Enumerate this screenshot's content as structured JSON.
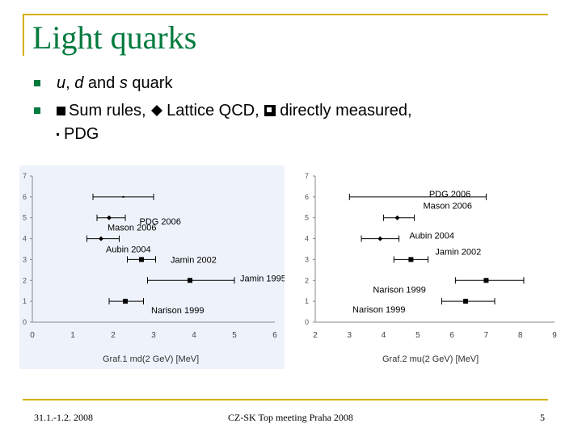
{
  "slide": {
    "title": "Light quarks",
    "bullets": {
      "b1": {
        "part1": "u",
        "part2": ", ",
        "part3": "d",
        "part4": " and ",
        "part5": "s",
        "part6": " quark"
      },
      "b2": {
        "t1": "Sum rules, ",
        "t2": "Lattice QCD, ",
        "t3": "directly measured,",
        "t4": "PDG"
      }
    },
    "footer": {
      "date": "31.1.-1.2. 2008",
      "event": "CZ-SK Top meeting Praha 2008",
      "page": "5"
    }
  },
  "colors": {
    "title": "#007a3d",
    "accent_rule": "#d4b000",
    "chart_bg": "#eef3fb"
  },
  "chart_data": [
    {
      "type": "scatter",
      "title": "",
      "xlabel": "Graf.1 md(2 GeV) [MeV]",
      "ylabel": "",
      "xlim": [
        0,
        6
      ],
      "ylim": [
        0,
        7
      ],
      "x_ticks": [
        "0",
        "1",
        "2",
        "3",
        "4",
        "5",
        "6"
      ],
      "y_ticks": [
        "0",
        "1",
        "2",
        "3",
        "4",
        "5",
        "6",
        "7"
      ],
      "points": [
        {
          "label": "PDG 2006",
          "y": 6,
          "x": 2.25,
          "lo": 1.5,
          "hi": 3.0,
          "marker": "dot"
        },
        {
          "label": "Mason 2006",
          "y": 5,
          "x": 1.9,
          "lo": 1.6,
          "hi": 2.3,
          "marker": "diamond"
        },
        {
          "label": "Aubin 2004",
          "y": 4,
          "x": 1.7,
          "lo": 1.35,
          "hi": 2.15,
          "marker": "diamond"
        },
        {
          "label": "Jamin 2002",
          "y": 3,
          "x": 2.7,
          "lo": 2.35,
          "hi": 3.05,
          "marker": "square"
        },
        {
          "label": "Jamin 1995",
          "y": 2,
          "x": 3.9,
          "lo": 2.85,
          "hi": 5.0,
          "marker": "square"
        },
        {
          "label": "Narison 1999",
          "y": 1,
          "x": 2.3,
          "lo": 1.9,
          "hi": 2.75,
          "marker": "square"
        }
      ]
    },
    {
      "type": "scatter",
      "title": "",
      "xlabel": "Graf.2 mu(2 GeV) [MeV]",
      "ylabel": "",
      "xlim": [
        2,
        9
      ],
      "ylim": [
        0,
        7
      ],
      "x_ticks": [
        "2",
        "3",
        "4",
        "5",
        "6",
        "7",
        "8",
        "9"
      ],
      "y_ticks": [
        "0",
        "1",
        "2",
        "3",
        "4",
        "5",
        "6",
        "7"
      ],
      "points": [
        {
          "label": "PDG 2006",
          "y": 6,
          "x": 5,
          "lo": 3.0,
          "hi": 7.0,
          "marker": "none"
        },
        {
          "label": "Mason 2006",
          "y": 5,
          "x": 4.4,
          "lo": 4.0,
          "hi": 4.9,
          "marker": "diamond"
        },
        {
          "label": "Aubin 2004",
          "y": 4,
          "x": 3.9,
          "lo": 3.35,
          "hi": 4.45,
          "marker": "diamond"
        },
        {
          "label": "Jamin 2002",
          "y": 3,
          "x": 4.8,
          "lo": 4.3,
          "hi": 5.3,
          "marker": "square"
        },
        {
          "label": "Narison 1999",
          "y": 2,
          "x": 7.0,
          "lo": 6.1,
          "hi": 8.1,
          "marker": "square"
        },
        {
          "label": "Narison 1999",
          "y": 1,
          "x": 6.4,
          "lo": 5.7,
          "hi": 7.25,
          "marker": "square"
        }
      ]
    }
  ]
}
